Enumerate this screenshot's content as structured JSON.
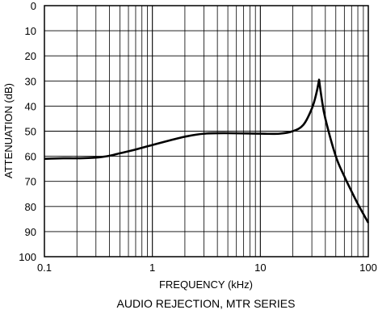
{
  "chart_data": {
    "type": "line",
    "title": "AUDIO REJECTION, MTR SERIES",
    "xlabel": "FREQUENCY (kHz)",
    "ylabel": "ATTENUATION (dB)",
    "x_scale": "log",
    "xlim": [
      0.1,
      100
    ],
    "ylim": [
      0,
      100
    ],
    "y_inverted": true,
    "grid": true,
    "x_tick_labels": [
      "0.1",
      "1",
      "10",
      "100"
    ],
    "y_tick_labels": [
      "0",
      "10",
      "20",
      "30",
      "40",
      "50",
      "60",
      "70",
      "80",
      "90",
      "100"
    ],
    "series": [
      {
        "x": [
          0.1,
          0.15,
          0.2,
          0.3,
          0.4,
          0.5,
          0.7,
          1.0,
          1.5,
          2.0,
          3.0,
          5.0,
          10,
          15,
          20,
          25,
          30,
          33,
          35,
          37,
          40,
          50,
          60,
          70,
          80,
          100
        ],
        "y": [
          61,
          60.8,
          60.8,
          60.5,
          59.8,
          58.8,
          57.3,
          55.5,
          53.5,
          52.2,
          51,
          50.8,
          51,
          51,
          50,
          47.5,
          41,
          35,
          29.5,
          37,
          45,
          60,
          68,
          74,
          79,
          86.5
        ]
      }
    ]
  }
}
